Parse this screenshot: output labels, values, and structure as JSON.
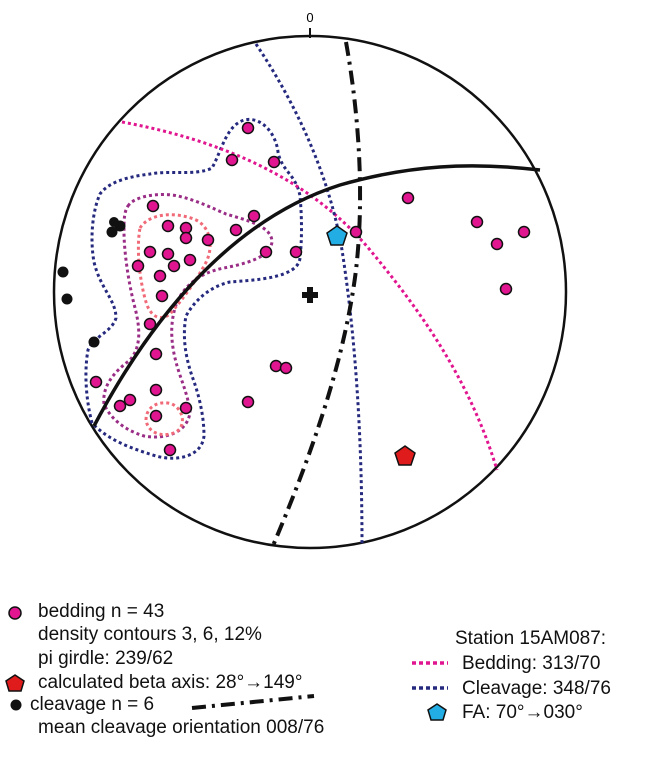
{
  "stereonet": {
    "north_label": "0"
  },
  "legend_left": {
    "bedding_label": "bedding n = 43",
    "contours_label": "density contours 3, 6, 12%",
    "girdle_label": "pi girdle: 239/62",
    "beta_label": "calculated beta axis: 28°→149°",
    "cleavage_label": "cleavage n = 6",
    "mean_cleavage_label": "mean cleavage orientation  008/76"
  },
  "legend_right": {
    "station_label": "Station 15AM087:",
    "bedding_label": "Bedding: 313/70",
    "cleavage_label": "Cleavage: 348/76",
    "fa_label": "FA: 70°→030°"
  },
  "colors": {
    "bedding_points": "#e0158f",
    "bedding_plane": "#e0158f",
    "cleavage_plane": "#262a7e",
    "contour_3": "#262a7e",
    "contour_6": "#9a2d86",
    "contour_12": "#f06a78",
    "beta_axis": "#e01b1b",
    "fold_axis": "#22aee4",
    "cleavage_points": "#111111"
  }
}
